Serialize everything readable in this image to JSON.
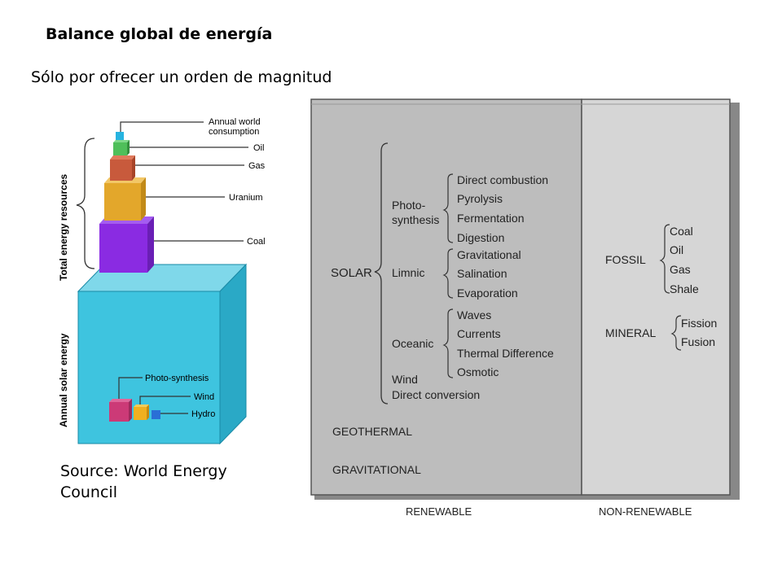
{
  "slide": {
    "title": "Balance global de energía",
    "subtitle": "Sólo por ofrecer un orden de magnitud",
    "source": "Source: World Energy Council"
  },
  "resources_figure": {
    "label_total": "Total energy resources",
    "label_solar": "Annual solar energy",
    "consumption_line1": "Annual world",
    "consumption_line2": "consumption",
    "oil": "Oil",
    "gas": "Gas",
    "uranium": "Uranium",
    "coal": "Coal",
    "photosynthesis": "Photo-synthesis",
    "wind": "Wind",
    "hydro": "Hydro",
    "colors": {
      "solar": "#3ec4df",
      "coal": "#8a2be2",
      "uranium": "#e3a72b",
      "gas": "#c85a3c",
      "oil": "#4fbf5a",
      "consumption": "#27b3e0",
      "photosynthesis": "#cc3a77",
      "wind": "#f0b020",
      "hydro": "#2a6fd6"
    }
  },
  "classification": {
    "solar": "SOLAR",
    "photo_line1": "Photo-",
    "photo_line2": "synthesis",
    "photo_items": [
      "Direct combustion",
      "Pyrolysis",
      "Fermentation",
      "Digestion"
    ],
    "limnic": "Limnic",
    "limnic_items": [
      "Gravitational",
      "Salination",
      "Evaporation"
    ],
    "oceanic": "Oceanic",
    "oceanic_items": [
      "Waves",
      "Currents",
      "Thermal Difference",
      "Osmotic"
    ],
    "wind": "Wind",
    "direct_conversion": "Direct conversion",
    "geothermal": "GEOTHERMAL",
    "gravitational": "GRAVITATIONAL",
    "fossil": "FOSSIL",
    "fossil_items": [
      "Coal",
      "Oil",
      "Gas",
      "Shale"
    ],
    "mineral": "MINERAL",
    "mineral_items": [
      "Fission",
      "Fusion"
    ],
    "renewable": "RENEWABLE",
    "non_renewable": "NON-RENEWABLE"
  }
}
